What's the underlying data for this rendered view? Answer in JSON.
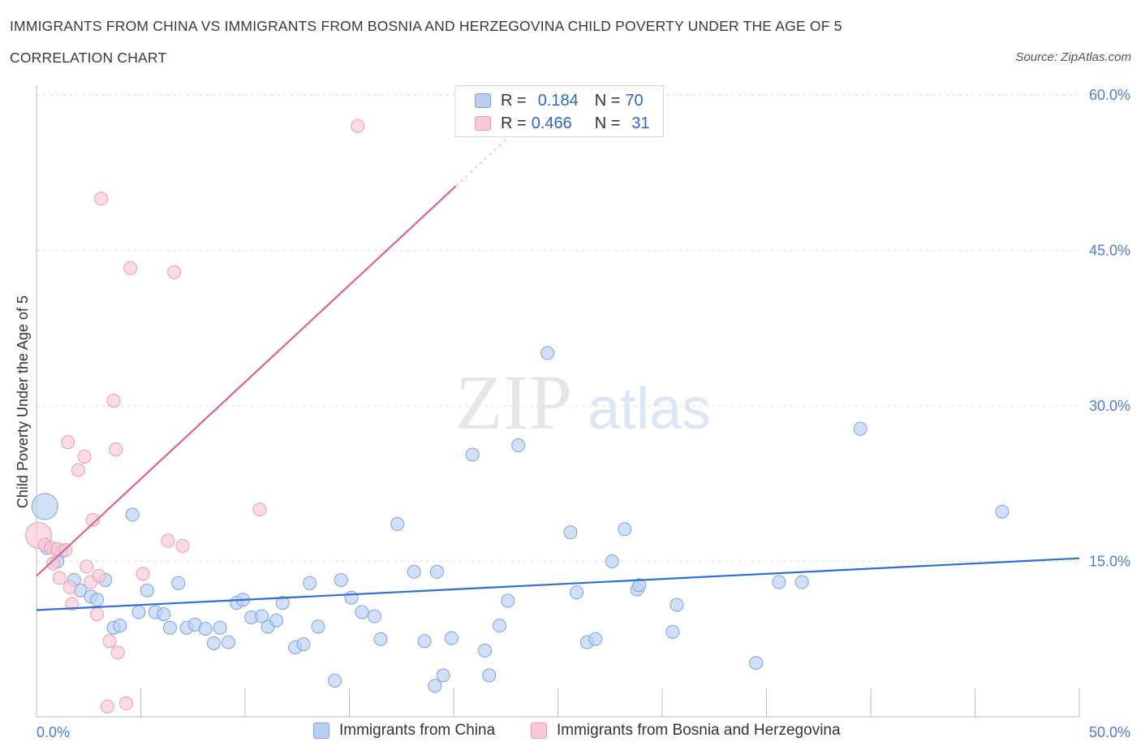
{
  "header": {
    "title": "IMMIGRANTS FROM CHINA VS IMMIGRANTS FROM BOSNIA AND HERZEGOVINA CHILD POVERTY UNDER THE AGE OF 5",
    "subtitle": "CORRELATION CHART",
    "source": "Source: ZipAtlas.com"
  },
  "watermark": {
    "zip": "ZIP",
    "atlas": "atlas"
  },
  "legend_top": {
    "rows": [
      {
        "r_label": "R =",
        "r_value": "0.184",
        "n_label": "N =",
        "n_value": "70"
      },
      {
        "r_label": "R =",
        "r_value": "0.466",
        "n_label": "N =",
        "n_value": "31"
      }
    ]
  },
  "legend_bottom": {
    "items": [
      {
        "label": "Immigrants from China"
      },
      {
        "label": "Immigrants from Bosnia and Herzegovina"
      }
    ]
  },
  "colors": {
    "china_fill": "#b8d0f3",
    "china_stroke": "#7aa3e3",
    "china_line": "#2f6fd0",
    "bosnia_fill": "#f9c7d6",
    "bosnia_stroke": "#ee9ab4",
    "bosnia_line": "#e0628e",
    "tick_text": "#4f7cd0",
    "grid": "#dcdcdc"
  },
  "chart_data": {
    "type": "scatter",
    "xlabel": "",
    "ylabel": "Child Poverty Under the Age of 5",
    "xlim": [
      0,
      50
    ],
    "ylim": [
      0,
      60
    ],
    "x_tick_labels": [
      {
        "value": 0,
        "label": "0.0%"
      },
      {
        "value": 50,
        "label": "50.0%"
      }
    ],
    "y_tick_labels": [
      {
        "value": 15,
        "label": "15.0%"
      },
      {
        "value": 30,
        "label": "30.0%"
      },
      {
        "value": 45,
        "label": "45.0%"
      },
      {
        "value": 60,
        "label": "60.0%"
      }
    ],
    "grid": true,
    "series": [
      {
        "name": "Immigrants from China",
        "trend": {
          "x": [
            0,
            50
          ],
          "y": [
            10.3,
            15.3
          ]
        },
        "points": [
          {
            "x": 0.4,
            "y": 20.3,
            "big": true
          },
          {
            "x": 0.5,
            "y": 16.3
          },
          {
            "x": 1.2,
            "y": 16.0
          },
          {
            "x": 1.0,
            "y": 15.0
          },
          {
            "x": 1.8,
            "y": 13.2
          },
          {
            "x": 2.1,
            "y": 12.2
          },
          {
            "x": 2.6,
            "y": 11.6
          },
          {
            "x": 2.9,
            "y": 11.3
          },
          {
            "x": 3.3,
            "y": 13.2
          },
          {
            "x": 3.7,
            "y": 8.6
          },
          {
            "x": 4.0,
            "y": 8.8
          },
          {
            "x": 4.6,
            "y": 19.5
          },
          {
            "x": 4.9,
            "y": 10.1
          },
          {
            "x": 5.3,
            "y": 12.2
          },
          {
            "x": 5.7,
            "y": 10.1
          },
          {
            "x": 6.1,
            "y": 9.9
          },
          {
            "x": 6.4,
            "y": 8.6
          },
          {
            "x": 6.8,
            "y": 12.9
          },
          {
            "x": 7.2,
            "y": 8.6
          },
          {
            "x": 7.6,
            "y": 8.9
          },
          {
            "x": 8.1,
            "y": 8.5
          },
          {
            "x": 8.5,
            "y": 7.1
          },
          {
            "x": 8.8,
            "y": 8.6
          },
          {
            "x": 9.2,
            "y": 7.2
          },
          {
            "x": 9.6,
            "y": 11.0
          },
          {
            "x": 9.9,
            "y": 11.3
          },
          {
            "x": 10.3,
            "y": 9.6
          },
          {
            "x": 10.8,
            "y": 9.7
          },
          {
            "x": 11.1,
            "y": 8.7
          },
          {
            "x": 11.5,
            "y": 9.3
          },
          {
            "x": 11.8,
            "y": 11.0
          },
          {
            "x": 12.4,
            "y": 6.7
          },
          {
            "x": 12.8,
            "y": 7.0
          },
          {
            "x": 13.1,
            "y": 12.9
          },
          {
            "x": 13.5,
            "y": 8.7
          },
          {
            "x": 14.3,
            "y": 3.5
          },
          {
            "x": 14.6,
            "y": 13.2
          },
          {
            "x": 15.1,
            "y": 11.5
          },
          {
            "x": 15.6,
            "y": 10.1
          },
          {
            "x": 16.2,
            "y": 9.7
          },
          {
            "x": 16.5,
            "y": 7.5
          },
          {
            "x": 17.3,
            "y": 18.6
          },
          {
            "x": 18.1,
            "y": 14.0
          },
          {
            "x": 18.6,
            "y": 7.3
          },
          {
            "x": 19.1,
            "y": 3.0
          },
          {
            "x": 19.2,
            "y": 14.0
          },
          {
            "x": 19.5,
            "y": 4.0
          },
          {
            "x": 19.9,
            "y": 7.6
          },
          {
            "x": 20.9,
            "y": 25.3
          },
          {
            "x": 21.5,
            "y": 6.4
          },
          {
            "x": 21.7,
            "y": 4.0
          },
          {
            "x": 22.2,
            "y": 8.8
          },
          {
            "x": 22.6,
            "y": 11.2
          },
          {
            "x": 23.1,
            "y": 26.2
          },
          {
            "x": 24.5,
            "y": 35.1
          },
          {
            "x": 25.6,
            "y": 17.8
          },
          {
            "x": 25.9,
            "y": 12.0
          },
          {
            "x": 26.4,
            "y": 7.2
          },
          {
            "x": 26.8,
            "y": 7.5
          },
          {
            "x": 27.6,
            "y": 15.0
          },
          {
            "x": 28.2,
            "y": 18.1
          },
          {
            "x": 28.8,
            "y": 12.3
          },
          {
            "x": 28.9,
            "y": 12.7
          },
          {
            "x": 30.5,
            "y": 8.2
          },
          {
            "x": 30.7,
            "y": 10.8
          },
          {
            "x": 34.5,
            "y": 5.2
          },
          {
            "x": 35.6,
            "y": 13.0
          },
          {
            "x": 36.7,
            "y": 13.0
          },
          {
            "x": 39.5,
            "y": 27.8
          },
          {
            "x": 46.3,
            "y": 19.8
          }
        ]
      },
      {
        "name": "Immigrants from Bosnia and Herzegovina",
        "trend": {
          "x": [
            0,
            20.1
          ],
          "y": [
            13.6,
            51.2
          ],
          "dash_to": {
            "x": 22.5,
            "y": 55.7
          }
        },
        "points": [
          {
            "x": 0.1,
            "y": 17.5,
            "big": true
          },
          {
            "x": 0.4,
            "y": 16.6
          },
          {
            "x": 0.7,
            "y": 16.3
          },
          {
            "x": 1.0,
            "y": 16.2
          },
          {
            "x": 0.8,
            "y": 14.8
          },
          {
            "x": 1.1,
            "y": 13.4
          },
          {
            "x": 1.4,
            "y": 16.1
          },
          {
            "x": 1.5,
            "y": 26.5
          },
          {
            "x": 1.6,
            "y": 12.5
          },
          {
            "x": 1.7,
            "y": 10.9
          },
          {
            "x": 2.0,
            "y": 23.8
          },
          {
            "x": 2.3,
            "y": 25.1
          },
          {
            "x": 2.4,
            "y": 14.5
          },
          {
            "x": 2.6,
            "y": 13.0
          },
          {
            "x": 2.7,
            "y": 19.0
          },
          {
            "x": 2.9,
            "y": 9.9
          },
          {
            "x": 3.0,
            "y": 13.6
          },
          {
            "x": 3.1,
            "y": 50.0
          },
          {
            "x": 3.4,
            "y": 1.0
          },
          {
            "x": 3.5,
            "y": 7.3
          },
          {
            "x": 3.7,
            "y": 30.5
          },
          {
            "x": 3.8,
            "y": 25.8
          },
          {
            "x": 3.9,
            "y": 6.2
          },
          {
            "x": 4.3,
            "y": 1.3
          },
          {
            "x": 4.5,
            "y": 43.3
          },
          {
            "x": 5.1,
            "y": 13.8
          },
          {
            "x": 6.3,
            "y": 17.0
          },
          {
            "x": 6.6,
            "y": 42.9
          },
          {
            "x": 7.0,
            "y": 16.5
          },
          {
            "x": 10.7,
            "y": 20.0
          },
          {
            "x": 15.4,
            "y": 57.0
          }
        ]
      }
    ]
  }
}
